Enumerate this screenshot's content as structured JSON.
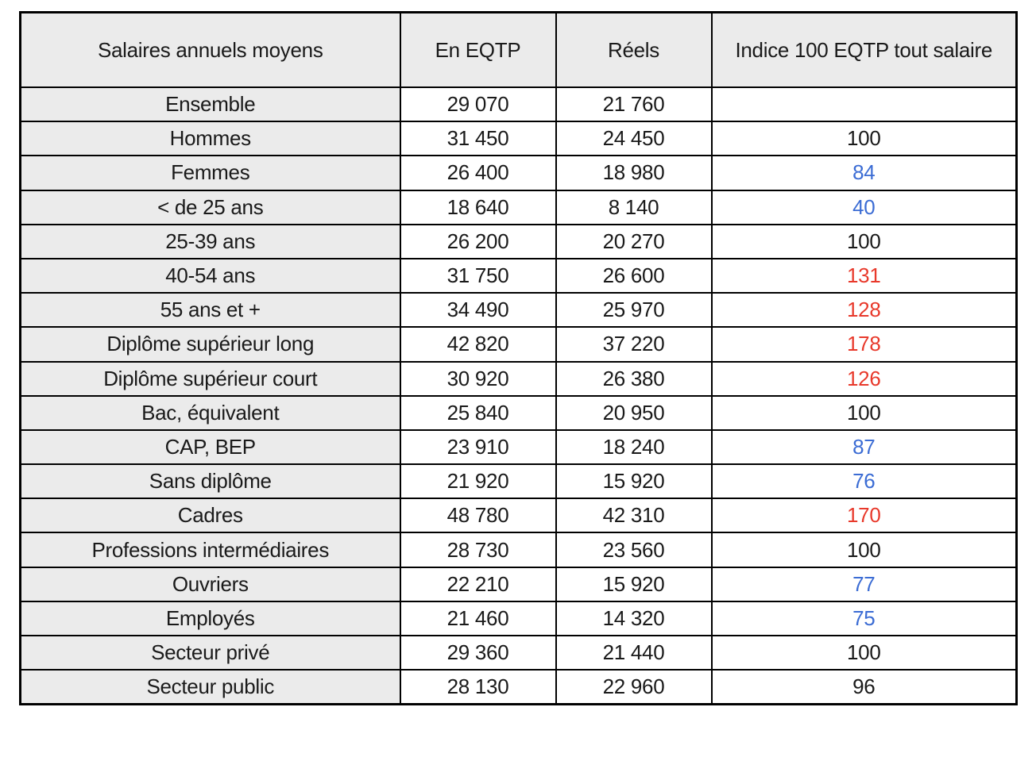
{
  "table": {
    "title": "Salaires annuels moyens",
    "columns": {
      "label": "Salaires annuels moyens",
      "eqtp": "En EQTP",
      "reels": "Réels",
      "indice": "Indice 100 EQTP tout salaire"
    },
    "colors": {
      "indice_blue": "#3b6cd4",
      "indice_red": "#e8392b",
      "indice_black": "#1a1a1a",
      "header_bg": "#ebebeb",
      "label_bg": "#ebebeb",
      "border": "#000000"
    },
    "rows": [
      {
        "label": "Ensemble",
        "eqtp": "29 070",
        "reels": "21 760",
        "indice": "",
        "indice_color": "black"
      },
      {
        "label": "Hommes",
        "eqtp": "31 450",
        "reels": "24 450",
        "indice": "100",
        "indice_color": "black"
      },
      {
        "label": "Femmes",
        "eqtp": "26 400",
        "reels": "18 980",
        "indice": "84",
        "indice_color": "blue"
      },
      {
        "label": "< de 25 ans",
        "eqtp": "18 640",
        "reels": "8 140",
        "indice": "40",
        "indice_color": "blue"
      },
      {
        "label": "25-39 ans",
        "eqtp": "26 200",
        "reels": "20 270",
        "indice": "100",
        "indice_color": "black"
      },
      {
        "label": "40-54 ans",
        "eqtp": "31 750",
        "reels": "26 600",
        "indice": "131",
        "indice_color": "red"
      },
      {
        "label": "55 ans et +",
        "eqtp": "34 490",
        "reels": "25 970",
        "indice": "128",
        "indice_color": "red"
      },
      {
        "label": "Diplôme supérieur long",
        "eqtp": "42 820",
        "reels": "37 220",
        "indice": "178",
        "indice_color": "red"
      },
      {
        "label": "Diplôme supérieur court",
        "eqtp": "30 920",
        "reels": "26 380",
        "indice": "126",
        "indice_color": "red"
      },
      {
        "label": "Bac, équivalent",
        "eqtp": "25 840",
        "reels": "20 950",
        "indice": "100",
        "indice_color": "black"
      },
      {
        "label": "CAP, BEP",
        "eqtp": "23 910",
        "reels": "18 240",
        "indice": "87",
        "indice_color": "blue"
      },
      {
        "label": "Sans diplôme",
        "eqtp": "21 920",
        "reels": "15 920",
        "indice": "76",
        "indice_color": "blue"
      },
      {
        "label": "Cadres",
        "eqtp": "48 780",
        "reels": "42 310",
        "indice": "170",
        "indice_color": "red"
      },
      {
        "label": "Professions intermédiaires",
        "eqtp": "28 730",
        "reels": "23 560",
        "indice": "100",
        "indice_color": "black"
      },
      {
        "label": "Ouvriers",
        "eqtp": "22 210",
        "reels": "15 920",
        "indice": "77",
        "indice_color": "blue"
      },
      {
        "label": "Employés",
        "eqtp": "21 460",
        "reels": "14 320",
        "indice": "75",
        "indice_color": "blue"
      },
      {
        "label": "Secteur privé",
        "eqtp": "29 360",
        "reels": "21 440",
        "indice": "100",
        "indice_color": "black"
      },
      {
        "label": "Secteur public",
        "eqtp": "28 130",
        "reels": "22 960",
        "indice": "96",
        "indice_color": "black"
      }
    ]
  }
}
